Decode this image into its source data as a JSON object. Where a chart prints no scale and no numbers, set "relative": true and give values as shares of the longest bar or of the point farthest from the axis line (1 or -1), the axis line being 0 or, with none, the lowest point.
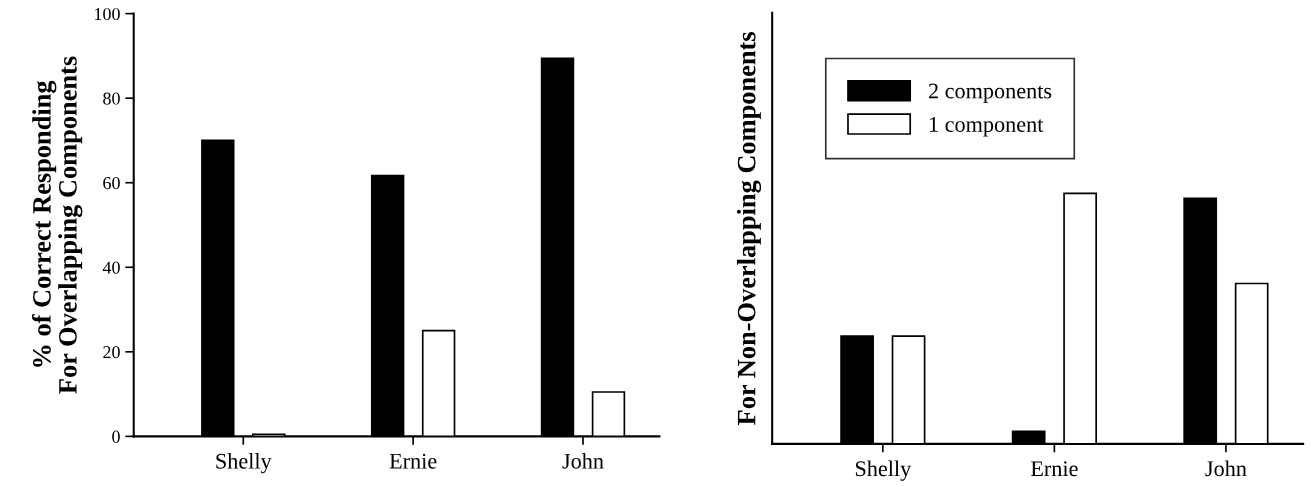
{
  "chart_data": [
    {
      "type": "bar",
      "ylabel": "% of Correct Responding\nFor Overlapping Components",
      "categories": [
        "Shelly",
        "Ernie",
        "John"
      ],
      "ylim": [
        0,
        100
      ],
      "yticks": [
        0,
        20,
        40,
        60,
        80,
        100
      ],
      "series": [
        {
          "color": "#000000",
          "values": [
            70,
            61.7,
            89.4
          ]
        },
        {
          "color": "#ffffff",
          "values": [
            0.5,
            25,
            10.5
          ]
        }
      ]
    },
    {
      "type": "bar",
      "ylabel": "For Non-Overlapping Components",
      "categories": [
        "Shelly",
        "Ernie",
        "John"
      ],
      "relative": true,
      "legend": "top left",
      "series": [
        {
          "name": "2 components",
          "color": "#000000",
          "values": [
            0.43,
            0.05,
            0.98
          ]
        },
        {
          "name": "1 component",
          "color": "#ffffff",
          "values": [
            0.43,
            1,
            0.64
          ]
        }
      ]
    }
  ]
}
